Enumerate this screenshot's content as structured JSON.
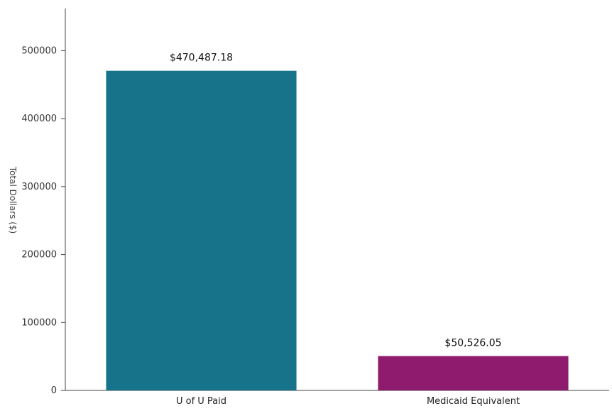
{
  "chart_data": {
    "type": "bar",
    "title": "",
    "xlabel": "",
    "ylabel": "Total Dollars ($)",
    "categories": [
      "U of U Paid",
      "Medicaid Equivalent"
    ],
    "values": [
      470487.18,
      50526.05
    ],
    "data_labels": [
      "$470,487.18",
      "$50,526.05"
    ],
    "colors": [
      "#17738a",
      "#8e1b6d"
    ],
    "ylim": [
      0,
      560000
    ],
    "yticks": [
      0,
      100000,
      200000,
      300000,
      400000,
      500000
    ],
    "ytick_labels": [
      "0",
      "100000",
      "200000",
      "300000",
      "400000",
      "500000"
    ],
    "grid": false,
    "legend": "none"
  }
}
